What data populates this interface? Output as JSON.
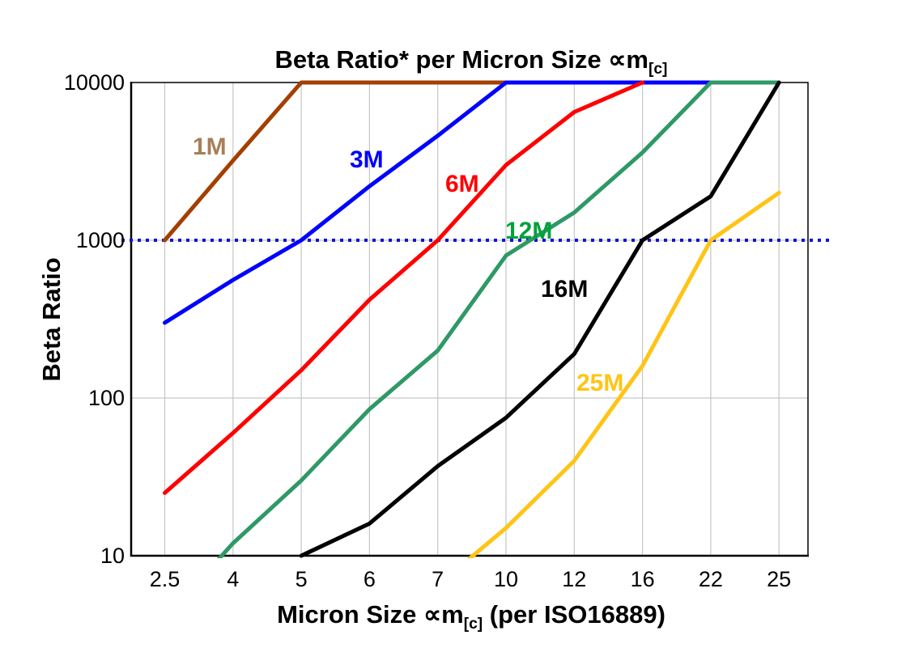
{
  "chart": {
    "title": {
      "prefix": "Beta Ratio* per Micron Size ",
      "symbol": "∝m",
      "subscript": "[c]"
    },
    "x_axis_title": {
      "prefix": "Micron Size ",
      "symbol": "∝m",
      "subscript": "[c]",
      "suffix": " (per ISO16889)"
    },
    "y_axis_title": "Beta Ratio"
  },
  "chart_data": {
    "type": "line",
    "title": "Beta Ratio* per Micron Size ∝m[c]",
    "xlabel": "Micron Size ∝m[c] (per ISO16889)",
    "ylabel": "Beta Ratio",
    "x_scale": "categorical",
    "y_scale": "log10",
    "ylim": [
      10,
      10000
    ],
    "y_tick_labels": [
      "10000",
      "1000",
      "100",
      "10"
    ],
    "y_tick_values": [
      10000,
      1000,
      100,
      10
    ],
    "grid": true,
    "legend": "inline-labels",
    "reference_line": {
      "y": 1000,
      "style": "dotted",
      "color": "#1515CE"
    },
    "categories": [
      "2.5",
      "4",
      "5",
      "6",
      "7",
      "10",
      "12",
      "16",
      "22",
      "25"
    ],
    "series": [
      {
        "name": "1M",
        "color": "#A33F00",
        "label_color": "#A87E58",
        "values": [
          1000,
          3200,
          10000,
          10000,
          10000,
          10000,
          null,
          null,
          null,
          null
        ]
      },
      {
        "name": "3M",
        "color": "#0000FF",
        "label_color": "#0000FF",
        "values": [
          300,
          560,
          1000,
          2200,
          4600,
          10000,
          10000,
          10000,
          10000,
          null
        ]
      },
      {
        "name": "6M",
        "color": "#FF0000",
        "label_color": "#FF0000",
        "values": [
          25,
          60,
          150,
          420,
          1000,
          3000,
          6500,
          10000,
          null,
          null
        ]
      },
      {
        "name": "12M",
        "color": "#2E9966",
        "label_color": "#00A13A",
        "values": [
          4,
          12,
          30,
          85,
          200,
          800,
          1500,
          3600,
          10000,
          10000
        ]
      },
      {
        "name": "16M",
        "color": "#000000",
        "label_color": "#000000",
        "values": [
          null,
          null,
          10,
          16,
          37,
          75,
          190,
          1000,
          1900,
          10000
        ]
      },
      {
        "name": "25M",
        "color": "#FFC415",
        "label_color": "#FFC415",
        "values": [
          null,
          null,
          null,
          null,
          6.5,
          15,
          40,
          160,
          1000,
          2000
        ]
      }
    ]
  },
  "colors": {
    "background": "#FFFFFF",
    "gridline": "#C6C6C6",
    "axis": "#000000",
    "reference": "#1515CE"
  }
}
